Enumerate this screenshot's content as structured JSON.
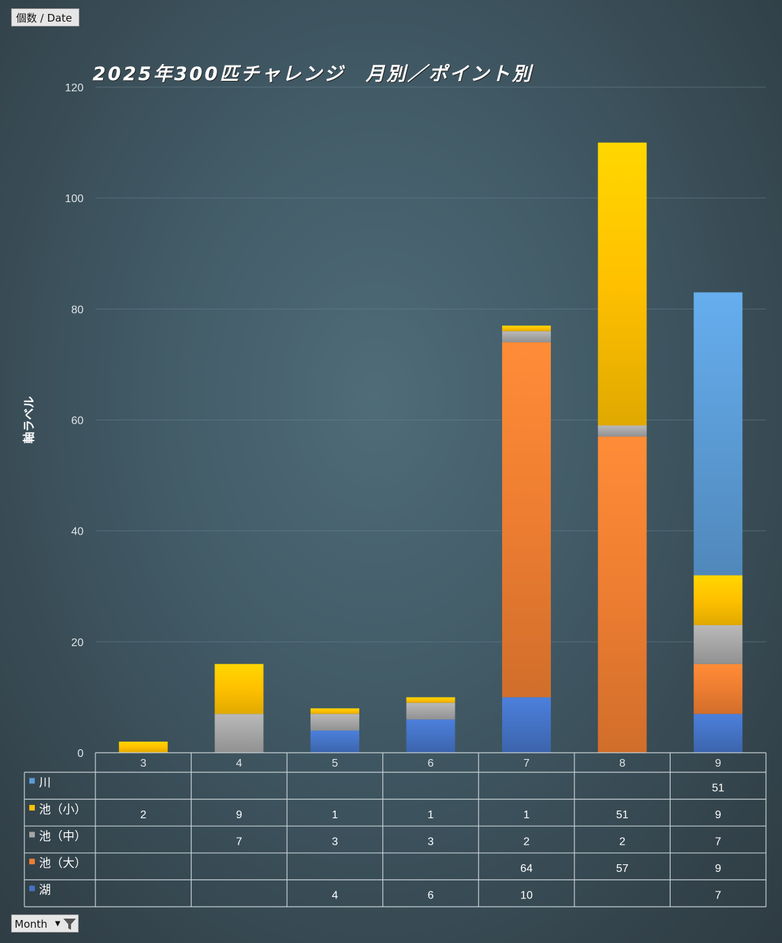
{
  "values_field": "個数 / Date",
  "axis_field": "Month",
  "chart_data": {
    "type": "bar",
    "stacked": true,
    "title": "2025年300匹チャレンジ　月別／ポイント別",
    "ylabel": "軸ラベル",
    "ylim": [
      0,
      120
    ],
    "yticks": [
      0,
      20,
      40,
      60,
      80,
      100,
      120
    ],
    "categories": [
      "3",
      "4",
      "5",
      "6",
      "7",
      "8",
      "9"
    ],
    "series": [
      {
        "name": "湖",
        "color": "#4472c4",
        "values": [
          null,
          null,
          4,
          6,
          10,
          null,
          7
        ]
      },
      {
        "name": "池（大）",
        "color": "#ed7d31",
        "values": [
          null,
          null,
          null,
          null,
          64,
          57,
          9
        ]
      },
      {
        "name": "池（中）",
        "color": "#a5a5a5",
        "values": [
          null,
          7,
          3,
          3,
          2,
          2,
          7
        ]
      },
      {
        "name": "池（小）",
        "color": "#ffc000",
        "values": [
          2,
          9,
          1,
          1,
          1,
          51,
          9
        ]
      },
      {
        "name": "川",
        "color": "#5b9bd5",
        "values": [
          null,
          null,
          null,
          null,
          null,
          null,
          51
        ]
      }
    ],
    "table_row_order": [
      "川",
      "池（小）",
      "池（中）",
      "池（大）",
      "湖"
    ],
    "grid": true,
    "legend": "data-table"
  }
}
